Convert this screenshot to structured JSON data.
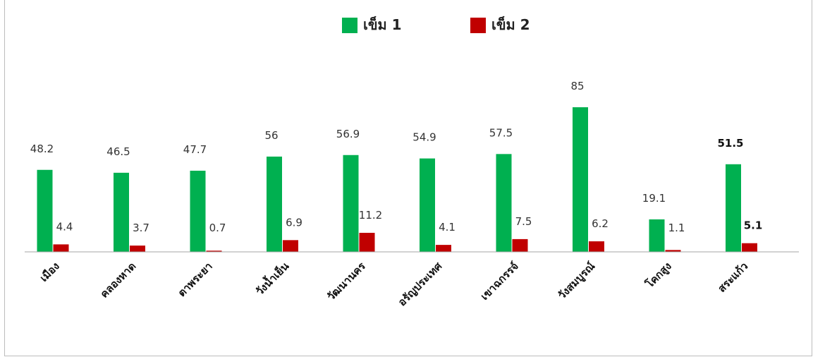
{
  "chart_data": {
    "type": "bar",
    "categories": [
      "เมือง",
      "คลองหาด",
      "ตาพระยา",
      "วังน้ำเย็น",
      "วัฒนานคร",
      "อรัญประเทศ",
      "เขาฉกรรจ์",
      "วังสมบูรณ์",
      "โคกสูง",
      "สระแก้ว"
    ],
    "series": [
      {
        "name": "เข็ม 1",
        "color": "#00b050",
        "values": [
          48.2,
          46.5,
          47.7,
          56,
          56.9,
          54.9,
          57.5,
          85,
          19.1,
          51.5
        ],
        "labels": [
          "48.2",
          "46.5",
          "47.7",
          "56",
          "56.9",
          "54.9",
          "57.5",
          "85",
          "19.1",
          "51.5"
        ]
      },
      {
        "name": "เข็ม 2",
        "color": "#c00000",
        "values": [
          4.4,
          3.7,
          0.7,
          6.9,
          11.2,
          4.1,
          7.5,
          6.2,
          1.1,
          5.1
        ],
        "labels": [
          "4.4",
          "3.7",
          "0.7",
          "6.9",
          "11.2",
          "4.1",
          "7.5",
          "6.2",
          "1.1",
          "5.1"
        ]
      }
    ],
    "bold_label_category": "สระแก้ว",
    "ylim": [
      0,
      100
    ],
    "grid": false,
    "legend_position": "top-center",
    "axis_color": "#a6a6a6"
  }
}
